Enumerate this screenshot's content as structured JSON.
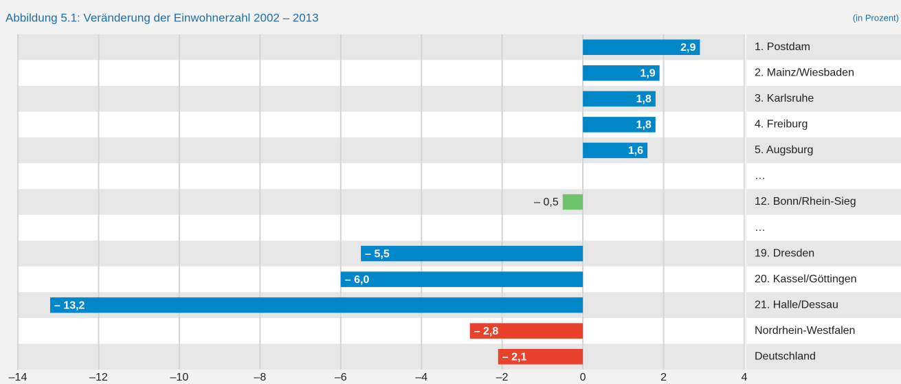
{
  "chart_data": {
    "type": "barh",
    "title": "Abbildung 5.1: Veränderung der Einwohnerzahl 2002 – 2013",
    "subtitle": "(in Prozent)",
    "categories": [
      "1. Postdam",
      "2. Mainz/Wiesbaden",
      "3. Karlsruhe",
      "4. Freiburg",
      "5. Augsburg",
      "…",
      "12. Bonn/Rhein-Sieg",
      "…",
      "19. Dresden",
      "20. Kassel/Göttingen",
      "21. Halle/Dessau",
      "Nordrhein-Westfalen",
      "Deutschland"
    ],
    "values": [
      2.9,
      1.9,
      1.8,
      1.8,
      1.6,
      null,
      -0.5,
      null,
      -5.5,
      -6.0,
      -13.2,
      -2.8,
      -2.1
    ],
    "value_labels": [
      "2,9",
      "1,9",
      "1,8",
      "1,8",
      "1,6",
      null,
      "– 0,5",
      null,
      "– 5,5",
      "– 6,0",
      "– 13,2",
      "– 2,8",
      "– 2,1"
    ],
    "colors": [
      "#0087c9",
      "#0087c9",
      "#0087c9",
      "#0087c9",
      "#0087c9",
      null,
      "#6cc36c",
      null,
      "#0087c9",
      "#0087c9",
      "#0087c9",
      "#e8412c",
      "#e8412c"
    ],
    "xlim": [
      -14,
      4
    ],
    "xticks": [
      {
        "value": -14,
        "label": "–14"
      },
      {
        "value": -12,
        "label": "–12"
      },
      {
        "value": -10,
        "label": "–10"
      },
      {
        "value": -8,
        "label": "–8"
      },
      {
        "value": -6,
        "label": "–6"
      },
      {
        "value": -4,
        "label": "–4"
      },
      {
        "value": -2,
        "label": "–2"
      },
      0,
      2,
      4
    ],
    "grid": true
  }
}
